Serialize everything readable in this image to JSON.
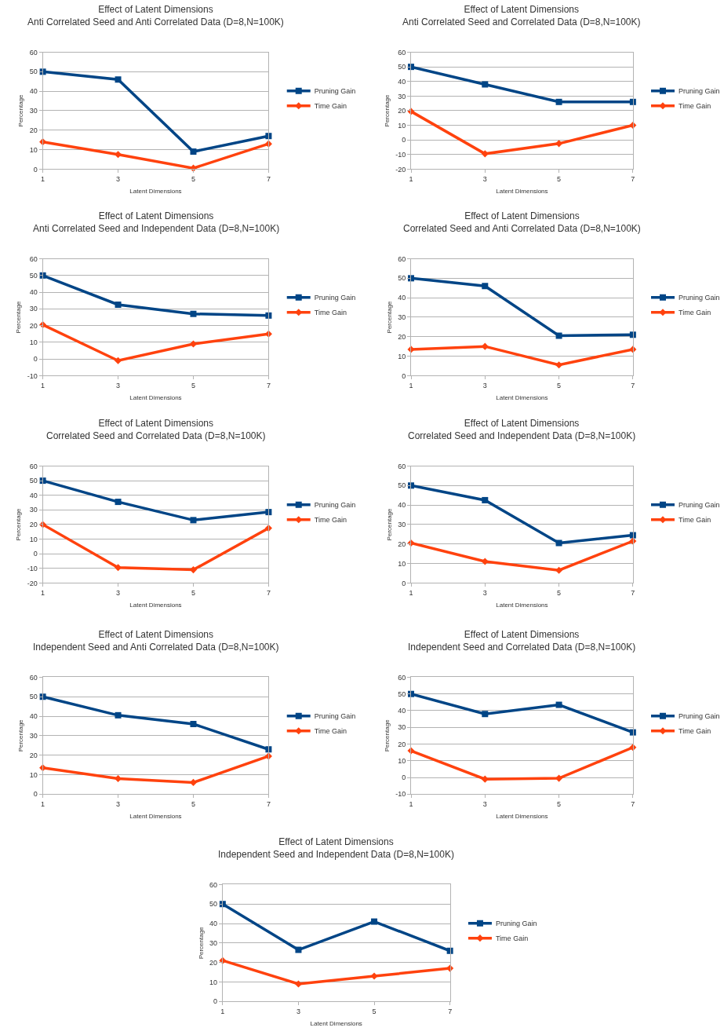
{
  "chart_data": [
    {
      "type": "line",
      "title": "Effect of Latent Dimensions",
      "subtitle": "Anti Correlated Seed and Anti Correlated Data (D=8,N=100K)",
      "xlabel": "Latent Dimensions",
      "ylabel": "Percentage",
      "x": [
        1,
        3,
        5,
        7
      ],
      "xlim": [
        1,
        7
      ],
      "xticks": [
        1,
        3,
        5,
        7
      ],
      "ylim": [
        0,
        60
      ],
      "yticks": [
        0,
        10,
        20,
        30,
        40,
        50,
        60
      ],
      "grid": "y",
      "legend": "right",
      "line_style": "solid",
      "series": [
        {
          "name": "Pruning Gain",
          "color": "#004586",
          "marker": "square",
          "values": [
            50,
            46,
            9,
            17
          ]
        },
        {
          "name": "Time Gain",
          "color": "#ff420e",
          "marker": "diamond",
          "values": [
            14,
            7.5,
            0.5,
            13
          ]
        }
      ]
    },
    {
      "type": "line",
      "title": "Effect of Latent Dimensions",
      "subtitle": "Anti Correlated Seed and Correlated Data (D=8,N=100K)",
      "xlabel": "Latent Dimensions",
      "ylabel": "Percentage",
      "x": [
        1,
        3,
        5,
        7
      ],
      "xlim": [
        1,
        7
      ],
      "xticks": [
        1,
        3,
        5,
        7
      ],
      "ylim": [
        -20,
        60
      ],
      "yticks": [
        -20,
        -10,
        0,
        10,
        20,
        30,
        40,
        50,
        60
      ],
      "grid": "y",
      "legend": "right",
      "line_style": "solid",
      "series": [
        {
          "name": "Pruning Gain",
          "color": "#004586",
          "marker": "square",
          "values": [
            50,
            38,
            26,
            26
          ]
        },
        {
          "name": "Time Gain",
          "color": "#ff420e",
          "marker": "diamond",
          "values": [
            19.5,
            -9.5,
            -2.5,
            10
          ]
        }
      ]
    },
    {
      "type": "line",
      "title": "Effect of Latent Dimensions",
      "subtitle": "Anti Correlated Seed and Independent Data (D=8,N=100K)",
      "xlabel": "Latent Dimensions",
      "ylabel": "Percentage",
      "x": [
        1,
        3,
        5,
        7
      ],
      "xlim": [
        1,
        7
      ],
      "xticks": [
        1,
        3,
        5,
        7
      ],
      "ylim": [
        -10,
        60
      ],
      "yticks": [
        -10,
        0,
        10,
        20,
        30,
        40,
        50,
        60
      ],
      "grid": "y",
      "legend": "right",
      "line_style": "solid",
      "series": [
        {
          "name": "Pruning Gain",
          "color": "#004586",
          "marker": "square",
          "values": [
            50,
            32.5,
            27,
            26
          ]
        },
        {
          "name": "Time Gain",
          "color": "#ff420e",
          "marker": "diamond",
          "values": [
            20.5,
            -1,
            9,
            15
          ]
        }
      ]
    },
    {
      "type": "line",
      "title": "Effect of Latent Dimensions",
      "subtitle": "Correlated Seed and Anti Correlated Data (D=8,N=100K)",
      "xlabel": "Latent Dimensions",
      "ylabel": "Percentage",
      "x": [
        1,
        3,
        5,
        7
      ],
      "xlim": [
        1,
        7
      ],
      "xticks": [
        1,
        3,
        5,
        7
      ],
      "ylim": [
        0,
        60
      ],
      "yticks": [
        0,
        10,
        20,
        30,
        40,
        50,
        60
      ],
      "grid": "y",
      "legend": "right",
      "line_style": "solid",
      "series": [
        {
          "name": "Pruning Gain",
          "color": "#004586",
          "marker": "square",
          "values": [
            50,
            46,
            20.5,
            21
          ]
        },
        {
          "name": "Time Gain",
          "color": "#ff420e",
          "marker": "diamond",
          "values": [
            13.5,
            15,
            5.5,
            13.5
          ]
        }
      ]
    },
    {
      "type": "line",
      "title": "Effect of Latent Dimensions",
      "subtitle": "Correlated Seed and Correlated Data (D=8,N=100K)",
      "xlabel": "Latent Dimensions",
      "ylabel": "Percentage",
      "x": [
        1,
        3,
        5,
        7
      ],
      "xlim": [
        1,
        7
      ],
      "xticks": [
        1,
        3,
        5,
        7
      ],
      "ylim": [
        -20,
        60
      ],
      "yticks": [
        -20,
        -10,
        0,
        10,
        20,
        30,
        40,
        50,
        60
      ],
      "grid": "y",
      "legend": "right",
      "line_style": "solid",
      "series": [
        {
          "name": "Pruning Gain",
          "color": "#004586",
          "marker": "square",
          "values": [
            50,
            35.5,
            23,
            28.5
          ]
        },
        {
          "name": "Time Gain",
          "color": "#ff420e",
          "marker": "diamond",
          "values": [
            20,
            -9.5,
            -11,
            17.5
          ]
        }
      ]
    },
    {
      "type": "line",
      "title": "Effect of Latent Dimensions",
      "subtitle": "Correlated Seed and Independent Data (D=8,N=100K)",
      "xlabel": "Latent Dimensions",
      "ylabel": "Percentage",
      "x": [
        1,
        3,
        5,
        7
      ],
      "xlim": [
        1,
        7
      ],
      "xticks": [
        1,
        3,
        5,
        7
      ],
      "ylim": [
        0,
        60
      ],
      "yticks": [
        0,
        10,
        20,
        30,
        40,
        50,
        60
      ],
      "grid": "y",
      "legend": "right",
      "line_style": "solid",
      "series": [
        {
          "name": "Pruning Gain",
          "color": "#004586",
          "marker": "square",
          "values": [
            50,
            42.5,
            20.5,
            24.5
          ]
        },
        {
          "name": "Time Gain",
          "color": "#ff420e",
          "marker": "diamond",
          "values": [
            20.5,
            11,
            6.5,
            21.5
          ]
        }
      ]
    },
    {
      "type": "line",
      "title": "Effect of Latent Dimensions",
      "subtitle": "Independent Seed and Anti Correlated Data (D=8,N=100K)",
      "xlabel": "Latent Dimensions",
      "ylabel": "Percentage",
      "x": [
        1,
        3,
        5,
        7
      ],
      "xlim": [
        1,
        7
      ],
      "xticks": [
        1,
        3,
        5,
        7
      ],
      "ylim": [
        0,
        60
      ],
      "yticks": [
        0,
        10,
        20,
        30,
        40,
        50,
        60
      ],
      "grid": "y",
      "legend": "right",
      "line_style": "solid",
      "series": [
        {
          "name": "Pruning Gain",
          "color": "#004586",
          "marker": "square",
          "values": [
            50,
            40.5,
            36,
            23
          ]
        },
        {
          "name": "Time Gain",
          "color": "#ff420e",
          "marker": "diamond",
          "values": [
            13.5,
            8,
            6,
            19.5
          ]
        }
      ]
    },
    {
      "type": "line",
      "title": "Effect of Latent Dimensions",
      "subtitle": "Independent Seed and Correlated Data (D=8,N=100K)",
      "xlabel": "Latent Dimensions",
      "ylabel": "Percentage",
      "x": [
        1,
        3,
        5,
        7
      ],
      "xlim": [
        1,
        7
      ],
      "xticks": [
        1,
        3,
        5,
        7
      ],
      "ylim": [
        -10,
        60
      ],
      "yticks": [
        -10,
        0,
        10,
        20,
        30,
        40,
        50,
        60
      ],
      "grid": "y",
      "legend": "right",
      "line_style": "solid",
      "series": [
        {
          "name": "Pruning Gain",
          "color": "#004586",
          "marker": "square",
          "values": [
            50,
            38,
            43.5,
            27
          ]
        },
        {
          "name": "Time Gain",
          "color": "#ff420e",
          "marker": "diamond",
          "values": [
            16,
            -1,
            -0.5,
            18
          ]
        }
      ]
    },
    {
      "type": "line",
      "title": "Effect of Latent Dimensions",
      "subtitle": "Independent Seed and Independent Data (D=8,N=100K)",
      "xlabel": "Latent Dimensions",
      "ylabel": "Percentage",
      "x": [
        1,
        3,
        5,
        7
      ],
      "xlim": [
        1,
        7
      ],
      "xticks": [
        1,
        3,
        5,
        7
      ],
      "ylim": [
        0,
        60
      ],
      "yticks": [
        0,
        10,
        20,
        30,
        40,
        50,
        60
      ],
      "grid": "y",
      "legend": "right",
      "line_style": "solid",
      "series": [
        {
          "name": "Pruning Gain",
          "color": "#004586",
          "marker": "square",
          "values": [
            50,
            26.5,
            41,
            26
          ]
        },
        {
          "name": "Time Gain",
          "color": "#ff420e",
          "marker": "diamond",
          "values": [
            21,
            9,
            13,
            17
          ]
        }
      ]
    }
  ]
}
